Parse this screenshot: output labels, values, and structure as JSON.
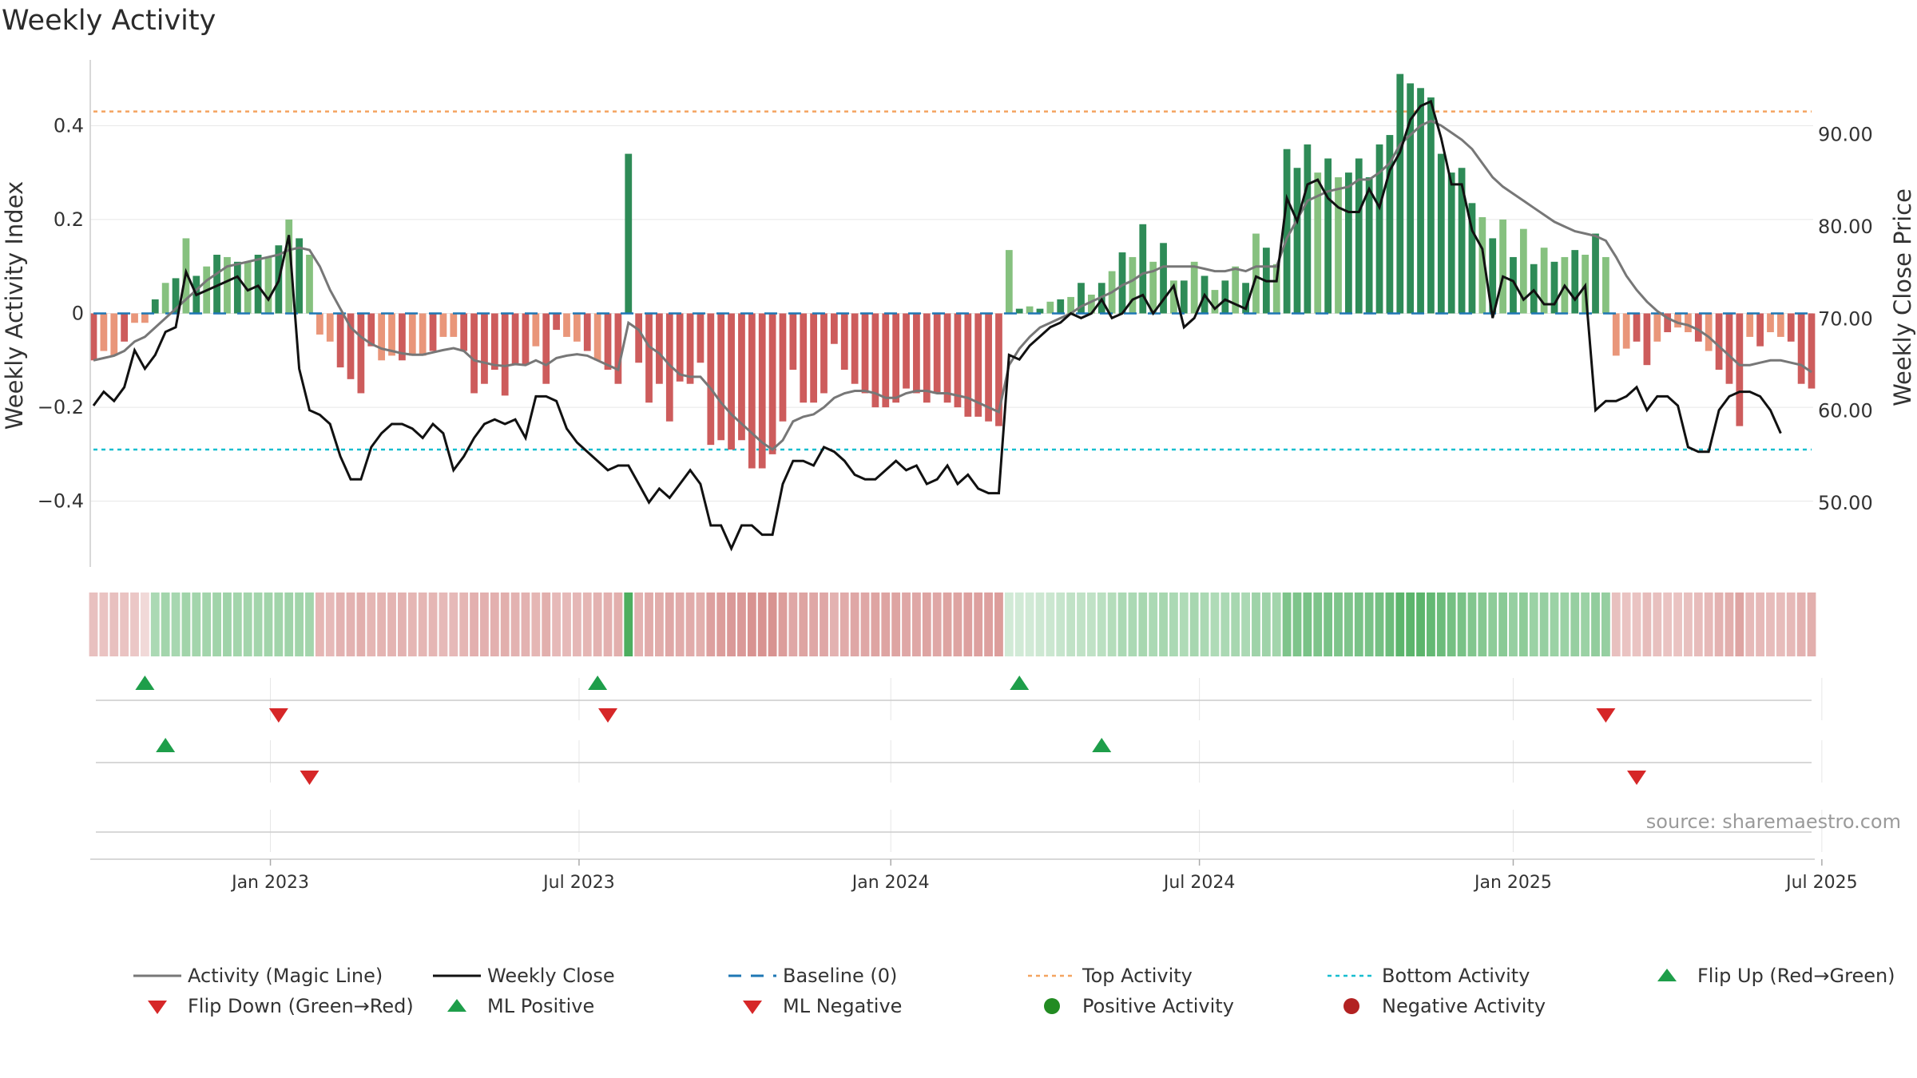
{
  "title": "Weekly Activity",
  "source": "source: sharemaestro.com",
  "chart_data": {
    "type": "bar",
    "ylabel": "Weekly Activity Index",
    "y2label": "Weekly Close Price",
    "ylim": [
      -0.54,
      0.54
    ],
    "y2lim": [
      43.0,
      98.0
    ],
    "yticks": [
      {
        "v": 0.4,
        "label": "0.4"
      },
      {
        "v": 0.2,
        "label": "0.2"
      },
      {
        "v": 0,
        "label": "0"
      },
      {
        "v": -0.2,
        "label": "−0.2"
      },
      {
        "v": -0.4,
        "label": "−0.4"
      }
    ],
    "y2ticks": [
      {
        "v": 90,
        "label": "90.00"
      },
      {
        "v": 80,
        "label": "80.00"
      },
      {
        "v": 70,
        "label": "70.00"
      },
      {
        "v": 60,
        "label": "60.00"
      },
      {
        "v": 50,
        "label": "50.00"
      }
    ],
    "xticks": [
      {
        "i": 17.2,
        "label": "Jan 2023"
      },
      {
        "i": 47.2,
        "label": "Jul 2023"
      },
      {
        "i": 77.5,
        "label": "Jan 2024"
      },
      {
        "i": 107.5,
        "label": "Jul 2024"
      },
      {
        "i": 138,
        "label": "Jan 2025"
      },
      {
        "i": 168,
        "label": "Jul 2025"
      }
    ],
    "top_activity": 0.43,
    "bottom_activity": -0.29,
    "baseline": 0,
    "colors": {
      "pos_strong": "#2e8b57",
      "pos_weak": "#86c17f",
      "neg_strong": "#cd5c5c",
      "neg_weak": "#e9967a",
      "magic": "#777777",
      "close": "#111111",
      "baseline": "#1f77b4",
      "top": "#f4a460",
      "bottom": "#17becf",
      "flip_up": "#1e9e4a",
      "flip_down": "#d62728"
    },
    "activity": [
      -0.1,
      -0.08,
      -0.09,
      -0.06,
      -0.02,
      -0.02,
      0.03,
      0.065,
      0.075,
      0.16,
      0.08,
      0.1,
      0.125,
      0.12,
      0.11,
      0.11,
      0.125,
      0.12,
      0.145,
      0.2,
      0.16,
      0.125,
      -0.045,
      -0.06,
      -0.115,
      -0.14,
      -0.17,
      -0.07,
      -0.1,
      -0.09,
      -0.1,
      -0.09,
      -0.09,
      -0.08,
      -0.05,
      -0.05,
      -0.08,
      -0.17,
      -0.15,
      -0.12,
      -0.175,
      -0.11,
      -0.11,
      -0.07,
      -0.15,
      -0.035,
      -0.05,
      -0.06,
      -0.08,
      -0.1,
      -0.12,
      -0.15,
      0.34,
      -0.105,
      -0.19,
      -0.15,
      -0.23,
      -0.145,
      -0.15,
      -0.105,
      -0.28,
      -0.27,
      -0.29,
      -0.27,
      -0.33,
      -0.33,
      -0.3,
      -0.23,
      -0.12,
      -0.19,
      -0.19,
      -0.17,
      -0.065,
      -0.12,
      -0.15,
      -0.17,
      -0.2,
      -0.2,
      -0.19,
      -0.16,
      -0.17,
      -0.19,
      -0.17,
      -0.19,
      -0.2,
      -0.22,
      -0.22,
      -0.23,
      -0.24,
      0.135,
      0.01,
      0.015,
      0.01,
      0.025,
      0.03,
      0.035,
      0.065,
      0.04,
      0.065,
      0.09,
      0.13,
      0.12,
      0.19,
      0.11,
      0.15,
      0.07,
      0.07,
      0.11,
      0.08,
      0.05,
      0.07,
      0.1,
      0.065,
      0.17,
      0.14,
      0.105,
      0.35,
      0.31,
      0.36,
      0.3,
      0.33,
      0.29,
      0.3,
      0.33,
      0.29,
      0.36,
      0.38,
      0.51,
      0.49,
      0.48,
      0.46,
      0.34,
      0.3,
      0.31,
      0.235,
      0.205,
      0.16,
      0.2,
      0.12,
      0.18,
      0.105,
      0.14,
      0.11,
      0.12,
      0.135,
      0.125,
      0.17,
      0.12,
      -0.09,
      -0.075,
      -0.06,
      -0.11,
      -0.06,
      -0.04,
      -0.03,
      -0.04,
      -0.06,
      -0.08,
      -0.12,
      -0.15,
      -0.24,
      -0.05,
      -0.07,
      -0.04,
      -0.05,
      -0.06,
      -0.15,
      -0.16
    ],
    "magic_line": [
      -0.1,
      -0.095,
      -0.09,
      -0.08,
      -0.06,
      -0.05,
      -0.03,
      -0.01,
      0.01,
      0.03,
      0.05,
      0.07,
      0.085,
      0.1,
      0.105,
      0.11,
      0.115,
      0.12,
      0.125,
      0.135,
      0.14,
      0.135,
      0.1,
      0.05,
      0.01,
      -0.03,
      -0.05,
      -0.065,
      -0.075,
      -0.08,
      -0.085,
      -0.088,
      -0.088,
      -0.083,
      -0.078,
      -0.074,
      -0.08,
      -0.1,
      -0.105,
      -0.11,
      -0.112,
      -0.108,
      -0.11,
      -0.1,
      -0.11,
      -0.095,
      -0.09,
      -0.087,
      -0.09,
      -0.1,
      -0.11,
      -0.12,
      -0.02,
      -0.035,
      -0.07,
      -0.085,
      -0.11,
      -0.13,
      -0.135,
      -0.135,
      -0.16,
      -0.19,
      -0.215,
      -0.235,
      -0.255,
      -0.275,
      -0.29,
      -0.27,
      -0.23,
      -0.22,
      -0.215,
      -0.2,
      -0.18,
      -0.17,
      -0.165,
      -0.165,
      -0.17,
      -0.18,
      -0.18,
      -0.17,
      -0.165,
      -0.165,
      -0.17,
      -0.17,
      -0.175,
      -0.18,
      -0.19,
      -0.2,
      -0.21,
      -0.11,
      -0.075,
      -0.05,
      -0.03,
      -0.02,
      -0.01,
      0.0,
      0.015,
      0.025,
      0.035,
      0.045,
      0.06,
      0.07,
      0.085,
      0.09,
      0.1,
      0.1,
      0.1,
      0.1,
      0.095,
      0.09,
      0.09,
      0.095,
      0.09,
      0.1,
      0.1,
      0.1,
      0.16,
      0.2,
      0.24,
      0.25,
      0.26,
      0.265,
      0.27,
      0.285,
      0.285,
      0.3,
      0.32,
      0.36,
      0.38,
      0.4,
      0.41,
      0.4,
      0.385,
      0.37,
      0.35,
      0.32,
      0.29,
      0.27,
      0.255,
      0.24,
      0.225,
      0.21,
      0.195,
      0.185,
      0.175,
      0.17,
      0.165,
      0.155,
      0.12,
      0.08,
      0.05,
      0.025,
      0.005,
      -0.01,
      -0.02,
      -0.025,
      -0.035,
      -0.05,
      -0.07,
      -0.09,
      -0.11,
      -0.11,
      -0.105,
      -0.1,
      -0.1,
      -0.105,
      -0.11,
      -0.125
    ],
    "weekly_close": [
      60.5,
      62.0,
      61.0,
      62.5,
      66.5,
      64.5,
      66.0,
      68.5,
      69.0,
      75.0,
      72.5,
      73.0,
      73.5,
      74.0,
      74.5,
      73.0,
      73.5,
      72.0,
      74.0,
      79.0,
      64.5,
      60.0,
      59.5,
      58.5,
      55.0,
      52.5,
      52.5,
      56.0,
      57.5,
      58.5,
      58.5,
      58.0,
      57.0,
      58.5,
      57.5,
      53.5,
      55.0,
      57.0,
      58.5,
      59.0,
      58.5,
      59.0,
      57.0,
      61.5,
      61.5,
      61.0,
      58.0,
      56.5,
      55.5,
      54.5,
      53.5,
      54.0,
      54.0,
      52.0,
      50.0,
      51.5,
      50.5,
      52.0,
      53.5,
      52.0,
      47.5,
      47.5,
      45.0,
      47.5,
      47.5,
      46.5,
      46.5,
      52.0,
      54.5,
      54.5,
      54.0,
      56.0,
      55.5,
      54.5,
      53.0,
      52.5,
      52.5,
      53.5,
      54.5,
      53.5,
      54.0,
      52.0,
      52.5,
      54.0,
      52.0,
      53.0,
      51.5,
      51.0,
      51.0,
      66.0,
      65.5,
      67.0,
      68.0,
      69.0,
      69.5,
      70.5,
      70.0,
      70.5,
      72.0,
      70.0,
      70.5,
      72.0,
      72.5,
      70.5,
      72.0,
      73.5,
      69.0,
      70.0,
      72.5,
      71.0,
      72.0,
      71.5,
      71.0,
      74.5,
      74.0,
      74.0,
      83.0,
      80.5,
      84.5,
      85.0,
      83.0,
      82.0,
      81.5,
      81.5,
      84.0,
      82.0,
      86.0,
      88.0,
      91.5,
      93.0,
      93.5,
      89.5,
      84.5,
      84.5,
      79.5,
      77.5,
      70.0,
      74.5,
      74.0,
      72.0,
      73.0,
      71.5,
      71.5,
      73.5,
      72.0,
      73.5,
      60.0,
      61.0,
      61.0,
      61.5,
      62.5,
      60.0,
      61.5,
      61.5,
      60.5,
      56.0,
      55.5,
      55.5,
      60.0,
      61.5,
      62.0,
      62.0,
      61.5,
      60.0,
      57.5
    ],
    "strip_levels": [
      0.36,
      0.34,
      0.36,
      0.34,
      0.32,
      0.22,
      0.4,
      0.44,
      0.42,
      0.45,
      0.44,
      0.44,
      0.45,
      0.46,
      0.44,
      0.44,
      0.44,
      0.45,
      0.45,
      0.46,
      0.45,
      0.44,
      0.42,
      0.4,
      0.44,
      0.44,
      0.46,
      0.42,
      0.43,
      0.43,
      0.44,
      0.42,
      0.42,
      0.42,
      0.4,
      0.4,
      0.42,
      0.45,
      0.45,
      0.45,
      0.46,
      0.44,
      0.44,
      0.42,
      0.46,
      0.4,
      0.4,
      0.41,
      0.42,
      0.44,
      0.45,
      0.46,
      0.85,
      0.44,
      0.48,
      0.47,
      0.5,
      0.48,
      0.48,
      0.46,
      0.54,
      0.56,
      0.58,
      0.58,
      0.62,
      0.62,
      0.62,
      0.56,
      0.5,
      0.52,
      0.5,
      0.5,
      0.44,
      0.48,
      0.5,
      0.5,
      0.52,
      0.52,
      0.52,
      0.5,
      0.5,
      0.52,
      0.5,
      0.52,
      0.52,
      0.54,
      0.54,
      0.54,
      0.56,
      0.22,
      0.22,
      0.22,
      0.24,
      0.25,
      0.27,
      0.3,
      0.3,
      0.3,
      0.33,
      0.36,
      0.4,
      0.4,
      0.42,
      0.4,
      0.42,
      0.4,
      0.38,
      0.42,
      0.4,
      0.38,
      0.4,
      0.42,
      0.4,
      0.46,
      0.46,
      0.44,
      0.62,
      0.62,
      0.64,
      0.62,
      0.64,
      0.62,
      0.62,
      0.64,
      0.64,
      0.66,
      0.7,
      0.78,
      0.78,
      0.78,
      0.74,
      0.7,
      0.66,
      0.64,
      0.6,
      0.58,
      0.54,
      0.56,
      0.5,
      0.54,
      0.48,
      0.5,
      0.48,
      0.48,
      0.5,
      0.48,
      0.52,
      0.5,
      0.36,
      0.34,
      0.34,
      0.38,
      0.36,
      0.34,
      0.34,
      0.36,
      0.38,
      0.4,
      0.44,
      0.46,
      0.52,
      0.4,
      0.4,
      0.38,
      0.38,
      0.4,
      0.44,
      0.46
    ],
    "signals": {
      "flip_up": [
        5,
        49,
        90
      ],
      "flip_down": [
        18,
        50,
        147
      ],
      "ml_positive": [
        7,
        98
      ],
      "ml_negative": [
        21,
        150
      ]
    }
  },
  "legend": {
    "items": [
      {
        "label": "Activity (Magic Line)",
        "sym": "magic"
      },
      {
        "label": "Weekly Close",
        "sym": "close"
      },
      {
        "label": "Baseline (0)",
        "sym": "baseline"
      },
      {
        "label": "Top Activity",
        "sym": "top"
      },
      {
        "label": "Bottom Activity",
        "sym": "bottom"
      },
      {
        "label": "Flip Up (Red→Green)",
        "sym": "flip_up"
      },
      {
        "label": "Flip Down (Green→Red)",
        "sym": "flip_down"
      },
      {
        "label": "ML Positive",
        "sym": "ml_pos"
      },
      {
        "label": "ML Negative",
        "sym": "ml_neg"
      },
      {
        "label": "Positive Activity",
        "sym": "pos_dot"
      },
      {
        "label": "Negative Activity",
        "sym": "neg_dot"
      }
    ]
  }
}
